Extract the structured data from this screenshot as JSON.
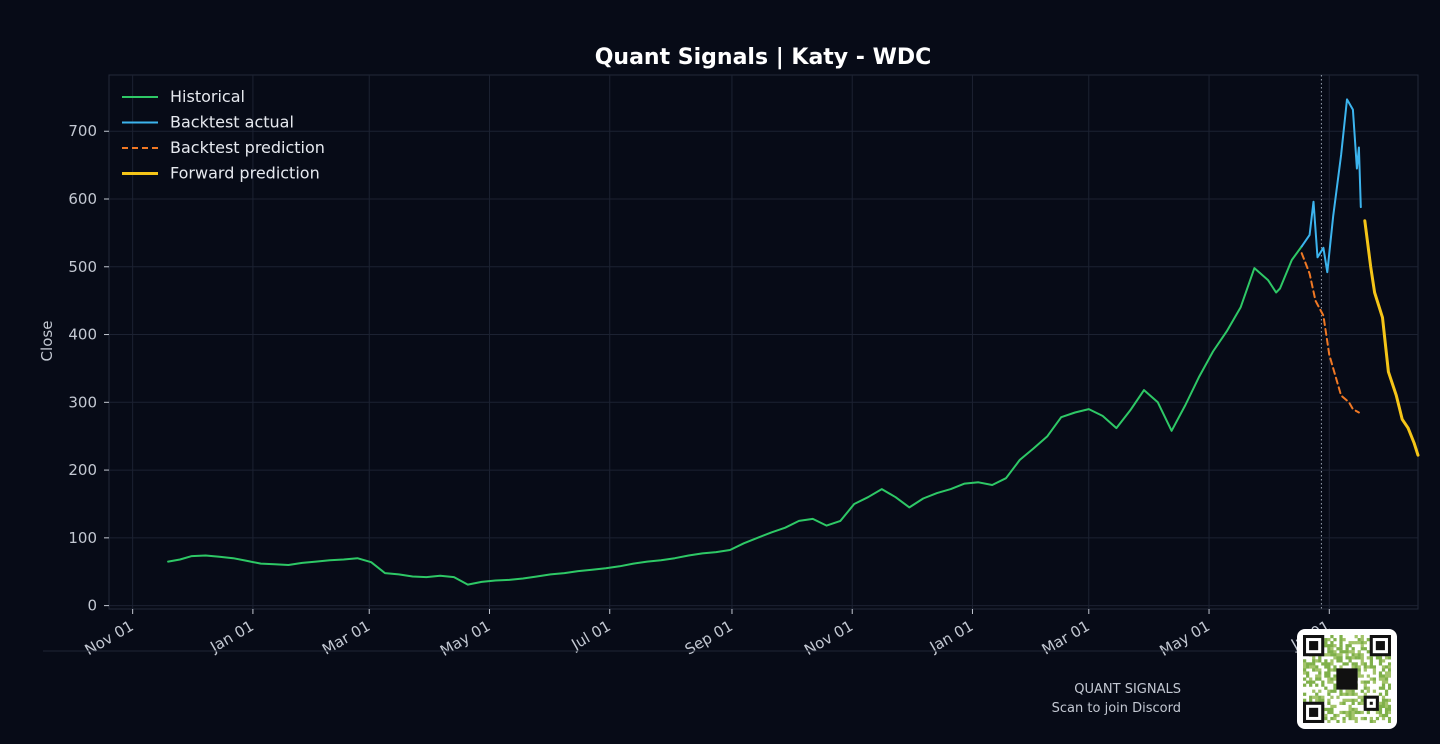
{
  "chart_data": {
    "type": "line",
    "title": "Quant Signals | Katy - WDC",
    "xlabel": "",
    "ylabel": "Close",
    "ylim": [
      -5,
      783
    ],
    "yticks": [
      0,
      100,
      200,
      300,
      400,
      500,
      600,
      700
    ],
    "xlim": [
      "2024-10-20",
      "2026-08-15"
    ],
    "xticks": [
      {
        "date": "2024-11-01",
        "label": "Nov 01"
      },
      {
        "date": "2025-01-01",
        "label": "Jan 01"
      },
      {
        "date": "2025-03-01",
        "label": "Mar 01"
      },
      {
        "date": "2025-05-01",
        "label": "May 01"
      },
      {
        "date": "2025-07-01",
        "label": "Jul 01"
      },
      {
        "date": "2025-09-01",
        "label": "Sep 01"
      },
      {
        "date": "2025-11-01",
        "label": "Nov 01"
      },
      {
        "date": "2026-01-01",
        "label": "Jan 01"
      },
      {
        "date": "2026-03-01",
        "label": "Mar 01"
      },
      {
        "date": "2026-05-01",
        "label": "May 01"
      },
      {
        "date": "2026-07-01",
        "label": "Jul 01"
      }
    ],
    "grid": true,
    "legend_position": "top-left",
    "split_date": "2026-06-27",
    "series": [
      {
        "name": "Historical",
        "color": "#2ec866",
        "style": "solid",
        "points": [
          [
            "2024-11-19",
            65
          ],
          [
            "2024-11-25",
            68
          ],
          [
            "2024-12-01",
            73
          ],
          [
            "2024-12-08",
            74
          ],
          [
            "2024-12-15",
            72
          ],
          [
            "2024-12-22",
            70
          ],
          [
            "2024-12-29",
            66
          ],
          [
            "2025-01-05",
            62
          ],
          [
            "2025-01-12",
            61
          ],
          [
            "2025-01-19",
            60
          ],
          [
            "2025-01-26",
            63
          ],
          [
            "2025-02-02",
            65
          ],
          [
            "2025-02-09",
            67
          ],
          [
            "2025-02-16",
            68
          ],
          [
            "2025-02-23",
            70
          ],
          [
            "2025-03-02",
            64
          ],
          [
            "2025-03-09",
            48
          ],
          [
            "2025-03-16",
            46
          ],
          [
            "2025-03-23",
            43
          ],
          [
            "2025-03-30",
            42
          ],
          [
            "2025-04-06",
            44
          ],
          [
            "2025-04-13",
            42
          ],
          [
            "2025-04-20",
            31
          ],
          [
            "2025-04-27",
            35
          ],
          [
            "2025-05-04",
            37
          ],
          [
            "2025-05-11",
            38
          ],
          [
            "2025-05-18",
            40
          ],
          [
            "2025-05-25",
            43
          ],
          [
            "2025-06-01",
            46
          ],
          [
            "2025-06-08",
            48
          ],
          [
            "2025-06-15",
            51
          ],
          [
            "2025-06-22",
            53
          ],
          [
            "2025-06-29",
            55
          ],
          [
            "2025-07-06",
            58
          ],
          [
            "2025-07-13",
            62
          ],
          [
            "2025-07-20",
            65
          ],
          [
            "2025-07-27",
            67
          ],
          [
            "2025-08-03",
            70
          ],
          [
            "2025-08-10",
            74
          ],
          [
            "2025-08-17",
            77
          ],
          [
            "2025-08-24",
            79
          ],
          [
            "2025-08-31",
            82
          ],
          [
            "2025-09-07",
            92
          ],
          [
            "2025-09-14",
            100
          ],
          [
            "2025-09-21",
            108
          ],
          [
            "2025-09-28",
            115
          ],
          [
            "2025-10-05",
            125
          ],
          [
            "2025-10-12",
            128
          ],
          [
            "2025-10-19",
            118
          ],
          [
            "2025-10-26",
            125
          ],
          [
            "2025-11-02",
            150
          ],
          [
            "2025-11-09",
            160
          ],
          [
            "2025-11-16",
            172
          ],
          [
            "2025-11-23",
            160
          ],
          [
            "2025-11-30",
            145
          ],
          [
            "2025-12-07",
            158
          ],
          [
            "2025-12-14",
            166
          ],
          [
            "2025-12-21",
            172
          ],
          [
            "2025-12-28",
            180
          ],
          [
            "2026-01-04",
            182
          ],
          [
            "2026-01-11",
            178
          ],
          [
            "2026-01-18",
            188
          ],
          [
            "2026-01-25",
            215
          ],
          [
            "2026-02-01",
            232
          ],
          [
            "2026-02-08",
            250
          ],
          [
            "2026-02-15",
            278
          ],
          [
            "2026-02-22",
            285
          ],
          [
            "2026-03-01",
            290
          ],
          [
            "2026-03-08",
            280
          ],
          [
            "2026-03-15",
            262
          ],
          [
            "2026-03-22",
            288
          ],
          [
            "2026-03-29",
            318
          ],
          [
            "2026-04-05",
            300
          ],
          [
            "2026-04-12",
            258
          ],
          [
            "2026-04-19",
            296
          ],
          [
            "2026-04-26",
            338
          ],
          [
            "2026-05-03",
            375
          ],
          [
            "2026-05-10",
            405
          ],
          [
            "2026-05-17",
            440
          ],
          [
            "2026-05-24",
            498
          ],
          [
            "2026-05-31",
            480
          ],
          [
            "2026-06-04",
            462
          ],
          [
            "2026-06-06",
            468
          ],
          [
            "2026-06-12",
            510
          ],
          [
            "2026-06-17",
            530
          ]
        ]
      },
      {
        "name": "Backtest actual",
        "color": "#3cb4ee",
        "style": "solid",
        "points": [
          [
            "2026-06-17",
            530
          ],
          [
            "2026-06-21",
            547
          ],
          [
            "2026-06-23",
            596
          ],
          [
            "2026-06-25",
            514
          ],
          [
            "2026-06-28",
            528
          ],
          [
            "2026-06-30",
            492
          ],
          [
            "2026-07-03",
            575
          ],
          [
            "2026-07-07",
            665
          ],
          [
            "2026-07-10",
            747
          ],
          [
            "2026-07-13",
            732
          ],
          [
            "2026-07-15",
            645
          ],
          [
            "2026-07-16",
            676
          ],
          [
            "2026-07-17",
            588
          ]
        ]
      },
      {
        "name": "Backtest prediction",
        "color": "#f07824",
        "style": "dashed",
        "points": [
          [
            "2026-06-17",
            520
          ],
          [
            "2026-06-21",
            490
          ],
          [
            "2026-06-24",
            450
          ],
          [
            "2026-06-28",
            428
          ],
          [
            "2026-07-01",
            370
          ],
          [
            "2026-07-04",
            340
          ],
          [
            "2026-07-07",
            310
          ],
          [
            "2026-07-11",
            300
          ],
          [
            "2026-07-13",
            290
          ],
          [
            "2026-07-16",
            285
          ]
        ]
      },
      {
        "name": "Forward prediction",
        "color": "#f5c518",
        "style": "solid",
        "points": [
          [
            "2026-07-19",
            568
          ],
          [
            "2026-07-22",
            500
          ],
          [
            "2026-07-24",
            462
          ],
          [
            "2026-07-28",
            425
          ],
          [
            "2026-07-31",
            345
          ],
          [
            "2026-08-04",
            310
          ],
          [
            "2026-08-07",
            275
          ],
          [
            "2026-08-10",
            262
          ],
          [
            "2026-08-13",
            240
          ],
          [
            "2026-08-15",
            222
          ]
        ]
      }
    ]
  },
  "footer": {
    "brand": "QUANT SIGNALS",
    "caption": "Scan to join Discord"
  }
}
